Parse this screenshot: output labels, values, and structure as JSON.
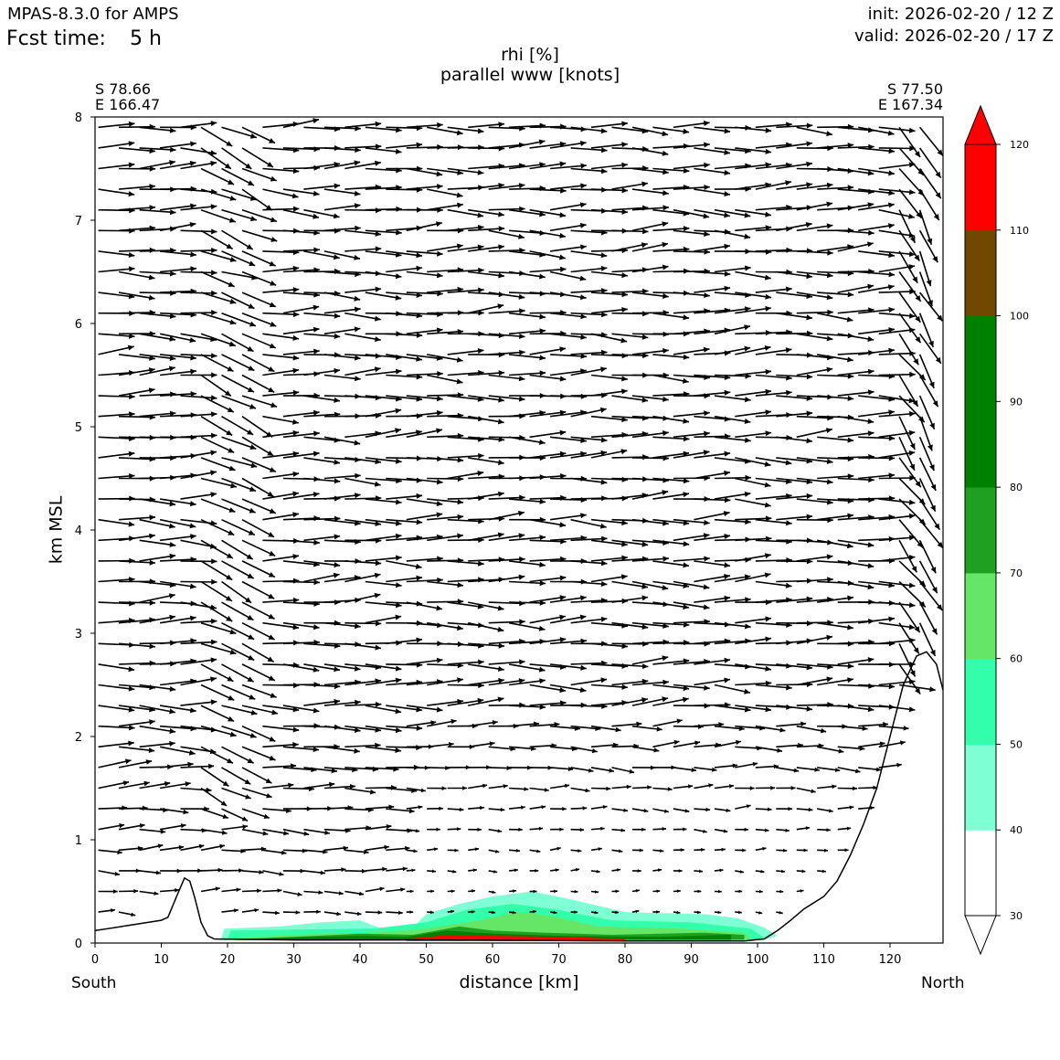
{
  "header": {
    "model": "MPAS-8.3.0 for AMPS",
    "fcst_label": "Fcst time:",
    "fcst_value": "5 h",
    "init": "init: 2026-02-20 / 12 Z",
    "valid": "valid: 2026-02-20 / 17 Z"
  },
  "title": {
    "line1": "rhi [%]",
    "line2": "parallel www [knots]"
  },
  "endpoints": {
    "left_s": "S 78.66",
    "left_e": "E 166.47",
    "right_s": "S 77.50",
    "right_e": "E 167.34",
    "left_dir": "South",
    "right_dir": "North"
  },
  "chart_data": {
    "type": "cross-section",
    "xlabel": "distance [km]",
    "ylabel": "km MSL",
    "xlim": [
      0,
      128
    ],
    "ylim": [
      0,
      8
    ],
    "xticks": [
      0,
      10,
      20,
      30,
      40,
      50,
      60,
      70,
      80,
      90,
      100,
      110,
      120
    ],
    "yticks": [
      0,
      1,
      2,
      3,
      4,
      5,
      6,
      7,
      8
    ],
    "terrain": [
      [
        0,
        0.12
      ],
      [
        5,
        0.17
      ],
      [
        10,
        0.22
      ],
      [
        11,
        0.25
      ],
      [
        12.5,
        0.48
      ],
      [
        13.5,
        0.63
      ],
      [
        14.3,
        0.6
      ],
      [
        15,
        0.45
      ],
      [
        16,
        0.2
      ],
      [
        17,
        0.07
      ],
      [
        18,
        0.04
      ],
      [
        30,
        0.03
      ],
      [
        50,
        0.03
      ],
      [
        80,
        0.02
      ],
      [
        98,
        0.02
      ],
      [
        101,
        0.04
      ],
      [
        103,
        0.12
      ],
      [
        105,
        0.22
      ],
      [
        107,
        0.33
      ],
      [
        110,
        0.45
      ],
      [
        112,
        0.6
      ],
      [
        114,
        0.85
      ],
      [
        116,
        1.15
      ],
      [
        118,
        1.5
      ],
      [
        120,
        2.0
      ],
      [
        122,
        2.5
      ],
      [
        124,
        2.78
      ],
      [
        125.5,
        2.82
      ],
      [
        127,
        2.7
      ],
      [
        128,
        2.45
      ]
    ],
    "rhi_levels": [
      30,
      40,
      50,
      60,
      70,
      80,
      90,
      100,
      110,
      120
    ],
    "rhi_colors": [
      "#ffffff",
      "#7fffd4",
      "#33ffaa",
      "#66e666",
      "#20a020",
      "#008000",
      "#008000",
      "#704800",
      "#ff0000"
    ],
    "colorbar_extend": "both",
    "rhi_regions": [
      {
        "level": 40,
        "outline": [
          [
            19,
            0.03
          ],
          [
            19.5,
            0.14
          ],
          [
            28,
            0.16
          ],
          [
            34,
            0.2
          ],
          [
            40,
            0.22
          ],
          [
            44,
            0.12
          ],
          [
            48,
            0.15
          ],
          [
            50,
            0.28
          ],
          [
            55,
            0.38
          ],
          [
            60,
            0.45
          ],
          [
            66,
            0.5
          ],
          [
            72,
            0.42
          ],
          [
            80,
            0.3
          ],
          [
            92,
            0.28
          ],
          [
            97,
            0.24
          ],
          [
            101,
            0.15
          ],
          [
            103,
            0.07
          ],
          [
            101,
            0.03
          ]
        ]
      },
      {
        "level": 50,
        "outline": [
          [
            20,
            0.04
          ],
          [
            20.5,
            0.12
          ],
          [
            30,
            0.13
          ],
          [
            42,
            0.14
          ],
          [
            50,
            0.2
          ],
          [
            56,
            0.32
          ],
          [
            63,
            0.38
          ],
          [
            70,
            0.32
          ],
          [
            78,
            0.22
          ],
          [
            90,
            0.2
          ],
          [
            99,
            0.14
          ],
          [
            101,
            0.05
          ],
          [
            99,
            0.03
          ]
        ]
      },
      {
        "level": 60,
        "outline": [
          [
            20,
            0.04
          ],
          [
            30,
            0.08
          ],
          [
            42,
            0.1
          ],
          [
            50,
            0.14
          ],
          [
            58,
            0.22
          ],
          [
            64,
            0.3
          ],
          [
            69,
            0.26
          ],
          [
            76,
            0.16
          ],
          [
            88,
            0.14
          ],
          [
            98,
            0.1
          ],
          [
            99,
            0.04
          ]
        ]
      },
      {
        "level": 70,
        "outline": [
          [
            18,
            0.03
          ],
          [
            30,
            0.06
          ],
          [
            40,
            0.09
          ],
          [
            48,
            0.08
          ],
          [
            55,
            0.16
          ],
          [
            60,
            0.12
          ],
          [
            68,
            0.1
          ],
          [
            78,
            0.08
          ],
          [
            92,
            0.1
          ],
          [
            98,
            0.08
          ],
          [
            98,
            0.03
          ]
        ]
      },
      {
        "level": 80,
        "outline": [
          [
            21,
            0.03
          ],
          [
            28,
            0.05
          ],
          [
            40,
            0.07
          ],
          [
            47,
            0.06
          ],
          [
            53,
            0.12
          ],
          [
            60,
            0.09
          ],
          [
            70,
            0.07
          ],
          [
            85,
            0.06
          ],
          [
            96,
            0.08
          ],
          [
            96,
            0.03
          ]
        ]
      },
      {
        "level": 110,
        "outline": [
          [
            47,
            0.04
          ],
          [
            52,
            0.07
          ],
          [
            60,
            0.07
          ],
          [
            70,
            0.06
          ],
          [
            80,
            0.04
          ],
          [
            80,
            0.02
          ],
          [
            47,
            0.02
          ]
        ]
      }
    ],
    "wind_grid": {
      "x_start": 0.5,
      "x_step": 3.1,
      "y_start": 0.3,
      "y_step": 0.2,
      "y_end": 7.95
    }
  }
}
